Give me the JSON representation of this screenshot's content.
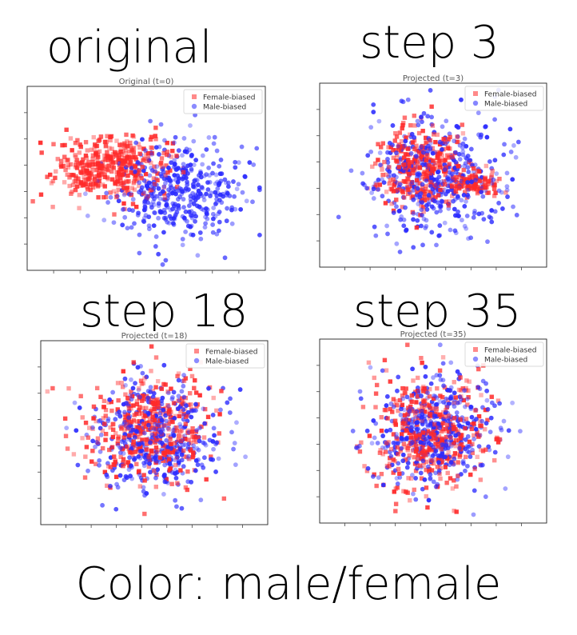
{
  "caption": "Color: male/female",
  "colors": {
    "female": "#ff2a2a",
    "male": "#2b2bff"
  },
  "chart_data": [
    {
      "type": "scatter",
      "label": "original",
      "title": "Original (t=0)",
      "legend": "top-right",
      "legend_entries": [
        "Female-biased",
        "Male-biased"
      ],
      "series": [
        {
          "name": "Female-biased",
          "marker": "square",
          "color": "#ff2a2a",
          "n": 420,
          "clusters": [
            {
              "cx": -1.3,
              "cy": 0.35,
              "sx": 1.0,
              "sy": 0.55,
              "w": 1
            }
          ]
        },
        {
          "name": "Male-biased",
          "marker": "circle",
          "color": "#2b2bff",
          "n": 420,
          "clusters": [
            {
              "cx": 1.2,
              "cy": -0.45,
              "sx": 1.1,
              "sy": 0.85,
              "w": 1
            }
          ]
        }
      ]
    },
    {
      "type": "scatter",
      "label": "step 3",
      "title": "Projected (t=3)",
      "legend": "top-right",
      "legend_entries": [
        "Female-biased",
        "Male-biased"
      ],
      "series": [
        {
          "name": "Female-biased",
          "marker": "square",
          "color": "#ff2a2a",
          "n": 420,
          "clusters": [
            {
              "cx": -0.4,
              "cy": 0.25,
              "sx": 0.85,
              "sy": 0.75,
              "w": 0.75
            },
            {
              "cx": 1.5,
              "cy": -0.25,
              "sx": 0.45,
              "sy": 0.22,
              "w": 0.25
            }
          ]
        },
        {
          "name": "Male-biased",
          "marker": "circle",
          "color": "#2b2bff",
          "n": 420,
          "clusters": [
            {
              "cx": 0.2,
              "cy": 0.0,
              "sx": 1.25,
              "sy": 1.0,
              "w": 1
            }
          ]
        }
      ]
    },
    {
      "type": "scatter",
      "label": "step 18",
      "title": "Projected (t=18)",
      "legend": "top-right",
      "legend_entries": [
        "Female-biased",
        "Male-biased"
      ],
      "series": [
        {
          "name": "Female-biased",
          "marker": "square",
          "color": "#ff2a2a",
          "n": 420,
          "clusters": [
            {
              "cx": -0.2,
              "cy": 0.15,
              "sx": 1.1,
              "sy": 0.95,
              "w": 1
            }
          ]
        },
        {
          "name": "Male-biased",
          "marker": "circle",
          "color": "#2b2bff",
          "n": 420,
          "clusters": [
            {
              "cx": 0.1,
              "cy": -0.1,
              "sx": 1.15,
              "sy": 1.0,
              "w": 1
            }
          ]
        }
      ]
    },
    {
      "type": "scatter",
      "label": "step 35",
      "title": "Projected (t=35)",
      "legend": "top-right",
      "legend_entries": [
        "Female-biased",
        "Male-biased"
      ],
      "series": [
        {
          "name": "Female-biased",
          "marker": "square",
          "color": "#ff2a2a",
          "n": 420,
          "clusters": [
            {
              "cx": 0.0,
              "cy": 0.0,
              "sx": 1.05,
              "sy": 0.95,
              "w": 1
            }
          ]
        },
        {
          "name": "Male-biased",
          "marker": "circle",
          "color": "#2b2bff",
          "n": 420,
          "clusters": [
            {
              "cx": 0.0,
              "cy": 0.0,
              "sx": 1.05,
              "sy": 0.95,
              "w": 1
            }
          ]
        }
      ]
    }
  ]
}
